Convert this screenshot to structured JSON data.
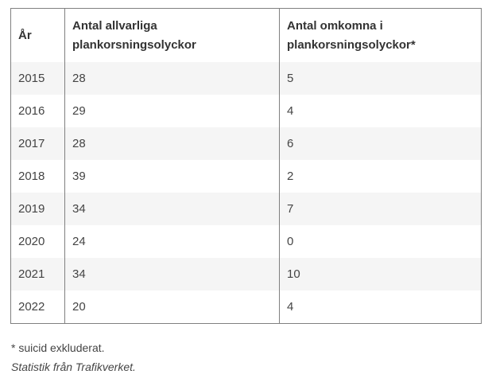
{
  "table": {
    "headers": {
      "year": "År",
      "serious": "Antal allvarliga plankorsningsolyckor",
      "killed": "Antal omkomna i plankorsningsolyckor*"
    },
    "rows": [
      {
        "year": "2015",
        "serious": "28",
        "killed": "5"
      },
      {
        "year": "2016",
        "serious": "29",
        "killed": "4"
      },
      {
        "year": "2017",
        "serious": "28",
        "killed": "6"
      },
      {
        "year": "2018",
        "serious": "39",
        "killed": "2"
      },
      {
        "year": "2019",
        "serious": "34",
        "killed": "7"
      },
      {
        "year": "2020",
        "serious": "24",
        "killed": "0"
      },
      {
        "year": "2021",
        "serious": "34",
        "killed": "10"
      },
      {
        "year": "2022",
        "serious": "20",
        "killed": "4"
      }
    ]
  },
  "footnote": "* suicid exkluderat.",
  "source": "Statistik från Trafikverket."
}
